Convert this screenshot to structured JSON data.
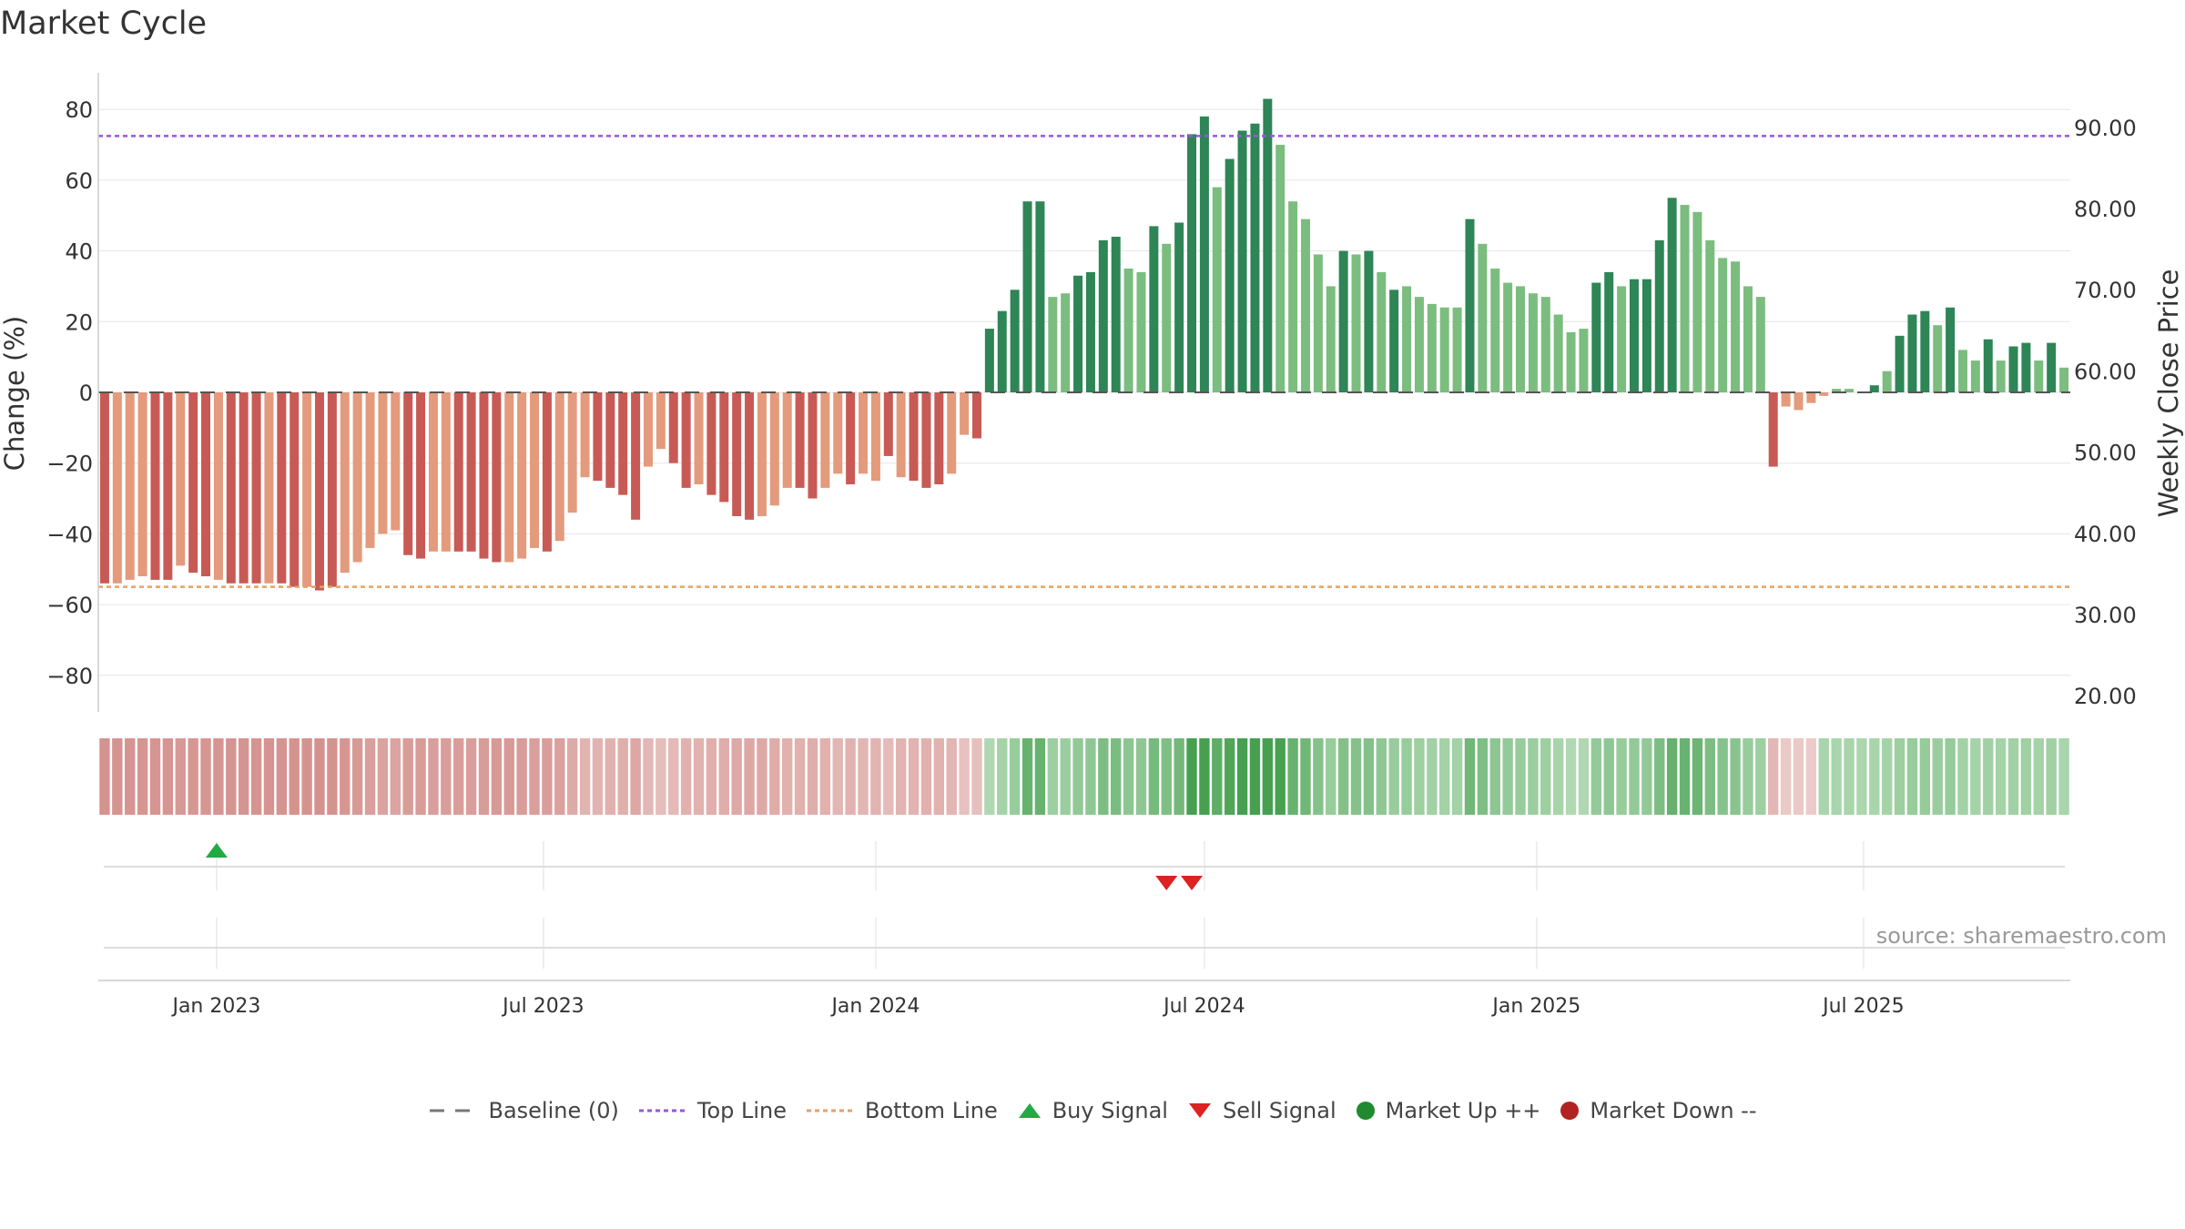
{
  "title": "Market Cycle",
  "source": "source: sharemaestro.com",
  "legend": [
    {
      "label": "Baseline (0)",
      "icon": "dash-line-gray",
      "color": "#777777"
    },
    {
      "label": "Top Line",
      "icon": "dotted-line-purple",
      "color": "#9955dd"
    },
    {
      "label": "Bottom Line",
      "icon": "dotted-line-orange",
      "color": "#e8a060"
    },
    {
      "label": "Buy Signal",
      "icon": "triangle-up-green",
      "color": "#22aa44"
    },
    {
      "label": "Sell Signal",
      "icon": "triangle-down-red",
      "color": "#dd2222"
    },
    {
      "label": "Market Up ++",
      "icon": "circle-green",
      "color": "#1f8a2e"
    },
    {
      "label": "Market Down --",
      "icon": "circle-red",
      "color": "#b22222"
    }
  ],
  "chart_data": {
    "type": "bar",
    "title": "Market Cycle",
    "ylabel": "Change (%)",
    "y2label": "Weekly Close Price",
    "ylim": [
      -90,
      90
    ],
    "y_ticks": [
      -80,
      -60,
      -40,
      -20,
      0,
      20,
      40,
      60,
      80
    ],
    "y2lim": [
      18.0,
      96.7
    ],
    "y2_ticks": [
      "20.00",
      "30.00",
      "40.00",
      "50.00",
      "60.00",
      "70.00",
      "80.00",
      "90.00"
    ],
    "x_start": "2022-10-31",
    "x_step_days": 7,
    "x_ticks": [
      {
        "date": "2023-01-01",
        "label": "Jan 2023"
      },
      {
        "date": "2023-07-01",
        "label": "Jul 2023"
      },
      {
        "date": "2024-01-01",
        "label": "Jan 2024"
      },
      {
        "date": "2024-07-01",
        "label": "Jul 2024"
      },
      {
        "date": "2025-01-01",
        "label": "Jan 2025"
      },
      {
        "date": "2025-07-01",
        "label": "Jul 2025"
      }
    ],
    "values": [
      -54,
      -54,
      -53,
      -52,
      -53,
      -53,
      -49,
      -51,
      -52,
      -53,
      -54,
      -54,
      -54,
      -54,
      -54,
      -55,
      -55,
      -56,
      -55,
      -51,
      -48,
      -44,
      -40,
      -39,
      -46,
      -47,
      -45,
      -45,
      -45,
      -45,
      -47,
      -48,
      -48,
      -47,
      -44,
      -45,
      -42,
      -34,
      -24,
      -25,
      -27,
      -29,
      -36,
      -21,
      -16,
      -20,
      -27,
      -26,
      -29,
      -31,
      -35,
      -36,
      -35,
      -32,
      -27,
      -27,
      -30,
      -27,
      -23,
      -26,
      -23,
      -25,
      -18,
      -24,
      -25,
      -27,
      -26,
      -23,
      -12,
      -13,
      18,
      23,
      29,
      54,
      54,
      27,
      28,
      33,
      34,
      43,
      44,
      35,
      34,
      47,
      42,
      48,
      73,
      78,
      58,
      66,
      74,
      76,
      83,
      70,
      54,
      49,
      39,
      30,
      40,
      39,
      40,
      34,
      29,
      30,
      27,
      25,
      24,
      24,
      49,
      42,
      35,
      31,
      30,
      28,
      27,
      22,
      17,
      18,
      31,
      34,
      30,
      32,
      32,
      43,
      55,
      53,
      51,
      43,
      38,
      37,
      30,
      27,
      -21,
      -4,
      -5,
      -3,
      -1,
      1,
      1,
      0,
      2,
      6,
      16,
      22,
      23,
      19,
      24,
      12,
      9,
      15,
      9,
      13,
      14,
      9,
      14,
      7
    ],
    "bar_tone": [
      "dark",
      "light",
      "light",
      "light",
      "dark",
      "dark",
      "light",
      "dark",
      "dark",
      "light",
      "dark",
      "dark",
      "dark",
      "light",
      "dark",
      "dark",
      "light",
      "dark",
      "dark",
      "light",
      "light",
      "light",
      "light",
      "light",
      "dark",
      "dark",
      "light",
      "light",
      "dark",
      "dark",
      "dark",
      "dark",
      "light",
      "light",
      "light",
      "dark",
      "light",
      "light",
      "light",
      "dark",
      "dark",
      "dark",
      "dark",
      "light",
      "light",
      "dark",
      "dark",
      "light",
      "dark",
      "dark",
      "dark",
      "dark",
      "light",
      "light",
      "light",
      "dark",
      "dark",
      "light",
      "light",
      "dark",
      "light",
      "light",
      "dark",
      "light",
      "dark",
      "dark",
      "dark",
      "light",
      "light",
      "dark",
      "dark",
      "dark",
      "dark",
      "dark",
      "dark",
      "light",
      "light",
      "dark",
      "dark",
      "dark",
      "dark",
      "light",
      "light",
      "dark",
      "light",
      "dark",
      "dark",
      "dark",
      "light",
      "dark",
      "dark",
      "dark",
      "dark",
      "light",
      "light",
      "light",
      "light",
      "light",
      "dark",
      "light",
      "dark",
      "light",
      "dark",
      "light",
      "light",
      "light",
      "light",
      "light",
      "dark",
      "light",
      "light",
      "light",
      "light",
      "light",
      "light",
      "light",
      "light",
      "light",
      "dark",
      "dark",
      "light",
      "dark",
      "dark",
      "dark",
      "dark",
      "light",
      "light",
      "light",
      "light",
      "light",
      "light",
      "light",
      "dark",
      "light",
      "light",
      "light",
      "light",
      "light",
      "light",
      "dark",
      "dark",
      "light",
      "dark",
      "dark",
      "dark",
      "light",
      "dark",
      "light",
      "light",
      "dark",
      "light",
      "dark",
      "dark",
      "light",
      "dark",
      "light"
    ],
    "top_line": 72.5,
    "bottom_line": -55,
    "heat_strip": [
      -0.78,
      -0.76,
      -0.75,
      -0.74,
      -0.75,
      -0.75,
      -0.7,
      -0.73,
      -0.74,
      -0.75,
      -0.76,
      -0.76,
      -0.76,
      -0.76,
      -0.76,
      -0.78,
      -0.78,
      -0.79,
      -0.78,
      -0.72,
      -0.68,
      -0.62,
      -0.56,
      -0.55,
      -0.65,
      -0.66,
      -0.63,
      -0.63,
      -0.63,
      -0.63,
      -0.66,
      -0.68,
      -0.68,
      -0.66,
      -0.62,
      -0.63,
      -0.59,
      -0.48,
      -0.34,
      -0.35,
      -0.38,
      -0.41,
      -0.51,
      -0.3,
      -0.23,
      -0.28,
      -0.38,
      -0.37,
      -0.41,
      -0.44,
      -0.49,
      -0.51,
      -0.49,
      -0.45,
      -0.38,
      -0.38,
      -0.42,
      -0.38,
      -0.32,
      -0.37,
      -0.32,
      -0.35,
      -0.25,
      -0.34,
      -0.35,
      -0.38,
      -0.37,
      -0.32,
      -0.17,
      -0.18,
      0.25,
      0.32,
      0.41,
      0.76,
      0.76,
      0.38,
      0.39,
      0.46,
      0.48,
      0.61,
      0.62,
      0.49,
      0.48,
      0.66,
      0.59,
      0.68,
      1.0,
      1.0,
      0.82,
      0.93,
      1.0,
      1.0,
      1.0,
      0.99,
      0.76,
      0.69,
      0.55,
      0.42,
      0.56,
      0.55,
      0.56,
      0.48,
      0.41,
      0.42,
      0.38,
      0.35,
      0.34,
      0.34,
      0.69,
      0.59,
      0.49,
      0.44,
      0.42,
      0.39,
      0.38,
      0.31,
      0.24,
      0.25,
      0.44,
      0.48,
      0.42,
      0.45,
      0.45,
      0.61,
      0.77,
      0.75,
      0.72,
      0.61,
      0.54,
      0.52,
      0.42,
      0.38,
      -0.3,
      -0.06,
      -0.07,
      -0.04,
      0.3,
      0.3,
      0.3,
      0.28,
      0.3,
      0.32,
      0.38,
      0.42,
      0.43,
      0.4,
      0.43,
      0.34,
      0.32,
      0.36,
      0.32,
      0.35,
      0.36,
      0.32,
      0.36,
      0.3
    ],
    "buy_signals": [
      "2023-01-01"
    ],
    "sell_signals": [
      "2024-06-10",
      "2024-06-24"
    ],
    "grid": true
  }
}
